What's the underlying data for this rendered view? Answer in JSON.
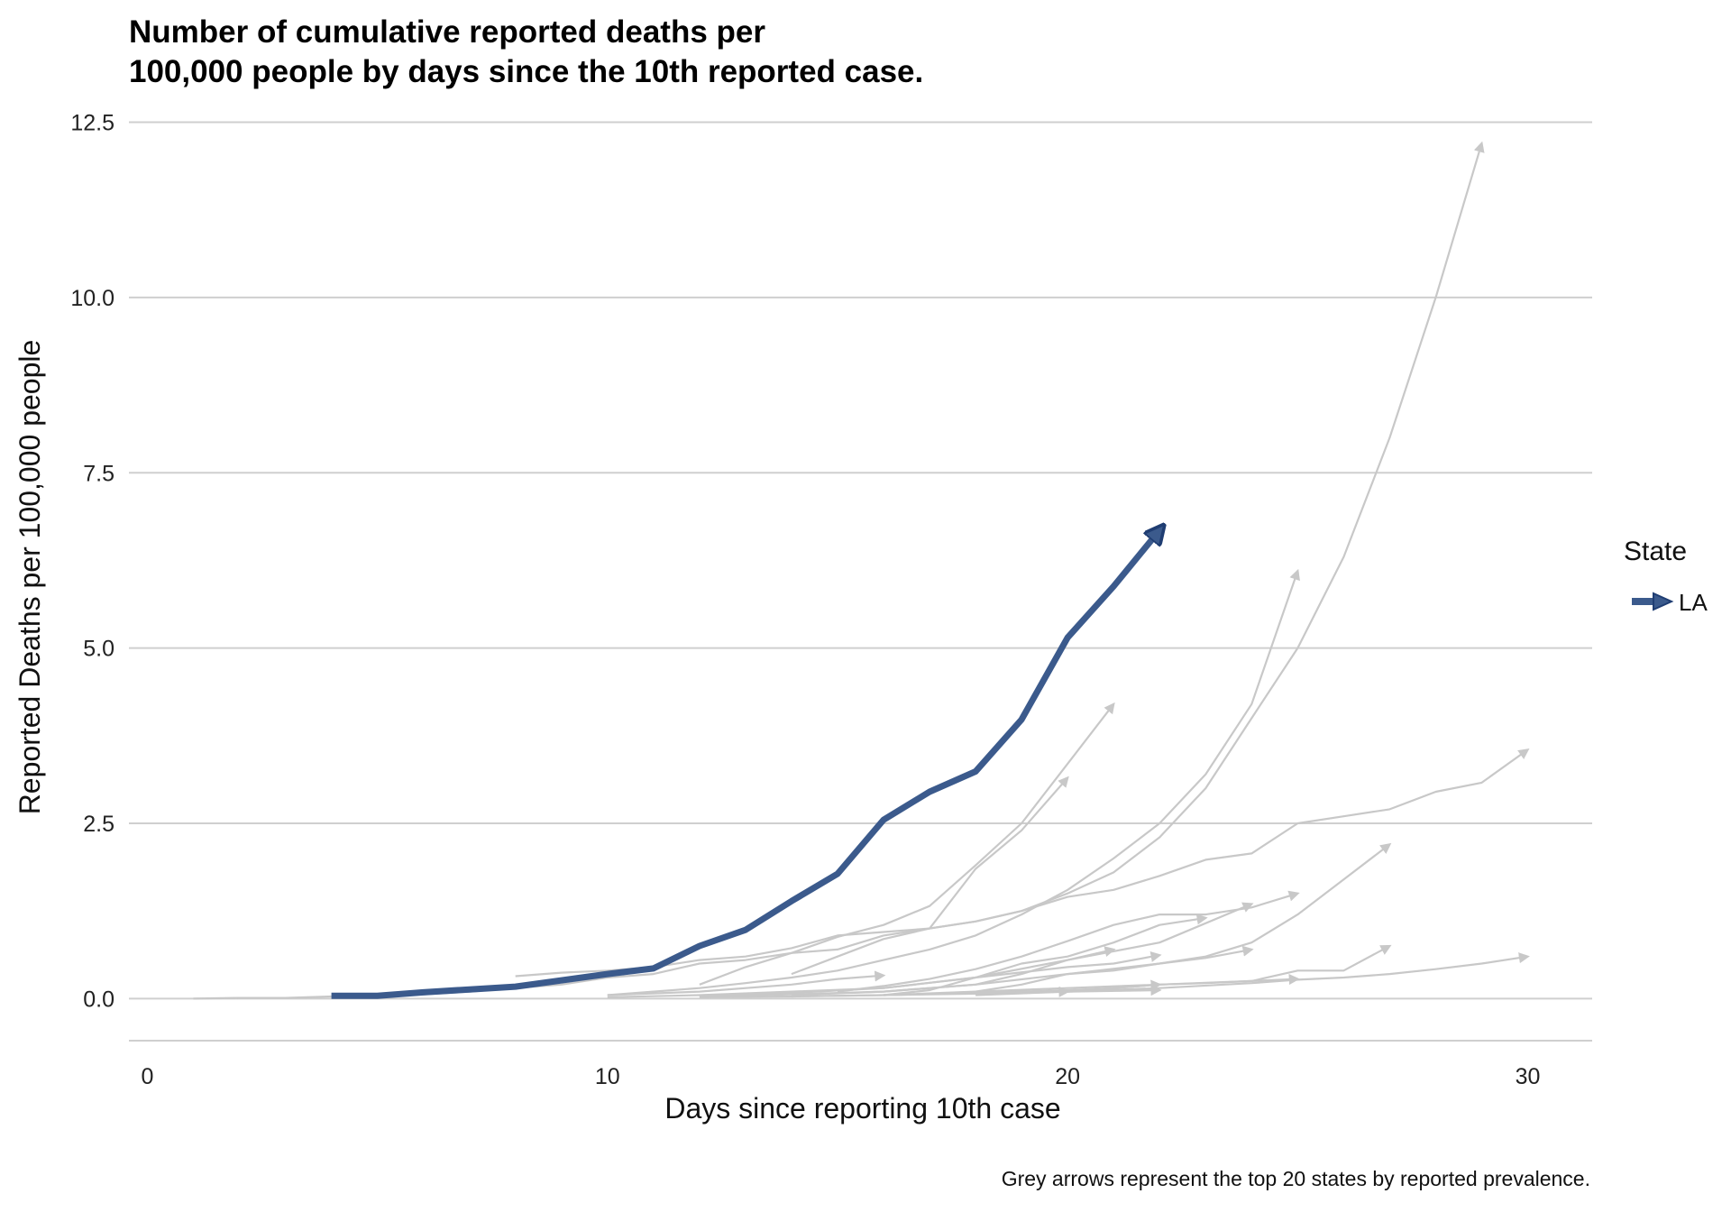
{
  "chart_data": {
    "type": "line",
    "title": "Number of cumulative reported deaths per\n100,000 people by days since the 10th reported case.",
    "title_lines": [
      "Number of cumulative reported deaths per",
      "100,000 people by days since the 10th reported case."
    ],
    "caption": "Grey arrows represent the top 20 states by reported prevalence.",
    "xlabel": "Days since reporting 10th case",
    "ylabel": "Reported Deaths per 100,000 people",
    "xlim": [
      -0.4,
      31.4
    ],
    "ylim": [
      -0.6,
      12.7
    ],
    "x_ticks": [
      0,
      10,
      20,
      30
    ],
    "x_tick_labels": [
      "0",
      "10",
      "20",
      "30"
    ],
    "y_ticks": [
      0,
      2.5,
      5,
      7.5,
      10,
      12.5
    ],
    "y_tick_labels": [
      "0.0",
      "2.5",
      "5.0",
      "7.5",
      "10.0",
      "12.5"
    ],
    "grid": "horizontal",
    "legend": {
      "title": "State",
      "placement": "right",
      "entries": [
        "LA"
      ]
    },
    "highlight_color": "#3b5a8c",
    "background_series_color": "#c8c8c8",
    "highlight_series": {
      "name": "LA",
      "x": [
        4,
        5,
        6,
        7,
        8,
        9,
        10,
        11,
        12,
        13,
        14,
        15,
        16,
        17,
        18,
        19,
        20,
        21,
        22
      ],
      "y": [
        0.04,
        0.04,
        0.09,
        0.13,
        0.17,
        0.26,
        0.35,
        0.43,
        0.75,
        0.98,
        1.39,
        1.78,
        2.55,
        2.95,
        3.24,
        3.98,
        5.15,
        5.88,
        6.68
      ]
    },
    "background_series": [
      {
        "x": [
          1,
          2,
          3,
          4,
          5,
          6,
          7,
          8,
          9,
          10,
          11,
          12,
          13,
          14,
          15,
          16,
          17,
          18,
          19,
          20,
          21,
          22,
          23,
          24,
          25,
          26,
          27,
          28,
          29
        ],
        "y": [
          0,
          0.01,
          0.01,
          0.03,
          0.04,
          0.06,
          0.1,
          0.15,
          0.2,
          0.3,
          0.35,
          0.5,
          0.55,
          0.65,
          0.7,
          0.9,
          1.0,
          1.1,
          1.25,
          1.5,
          1.8,
          2.3,
          3.0,
          4.0,
          5.0,
          6.3,
          8.0,
          10.0,
          12.2
        ]
      },
      {
        "x": [
          8,
          9,
          10,
          11,
          12,
          13,
          14,
          15,
          16,
          17,
          18,
          19,
          20,
          21,
          22,
          23,
          24,
          25,
          26,
          27,
          28,
          29,
          30
        ],
        "y": [
          0.32,
          0.37,
          0.4,
          0.45,
          0.55,
          0.6,
          0.72,
          0.9,
          0.95,
          1.0,
          1.1,
          1.25,
          1.45,
          1.55,
          1.75,
          1.98,
          2.07,
          2.5,
          2.6,
          2.7,
          2.95,
          3.08,
          3.55
        ]
      },
      {
        "x": [
          10,
          11,
          12,
          13,
          14,
          15,
          16,
          17,
          18,
          19,
          20,
          21,
          22,
          23,
          24,
          25
        ],
        "y": [
          0.05,
          0.1,
          0.15,
          0.22,
          0.3,
          0.4,
          0.55,
          0.7,
          0.9,
          1.2,
          1.55,
          2.0,
          2.5,
          3.2,
          4.2,
          6.1
        ]
      },
      {
        "x": [
          12,
          13,
          14,
          15,
          16,
          17,
          18,
          19,
          20,
          21
        ],
        "y": [
          0.2,
          0.45,
          0.65,
          0.88,
          1.05,
          1.32,
          1.9,
          2.5,
          3.35,
          4.2
        ]
      },
      {
        "x": [
          14,
          15,
          16,
          17,
          18,
          19,
          20
        ],
        "y": [
          0.35,
          0.6,
          0.85,
          1.0,
          1.85,
          2.4,
          3.15
        ]
      },
      {
        "x": [
          15,
          16,
          17,
          18,
          19,
          20,
          21,
          22,
          23,
          24,
          25
        ],
        "y": [
          0.1,
          0.18,
          0.28,
          0.42,
          0.6,
          0.82,
          1.05,
          1.2,
          1.2,
          1.3,
          1.5
        ]
      },
      {
        "x": [
          12,
          14,
          16,
          18,
          20,
          22,
          24
        ],
        "y": [
          0.04,
          0.08,
          0.15,
          0.3,
          0.55,
          0.8,
          1.35
        ]
      },
      {
        "x": [
          16,
          17,
          18,
          19,
          20,
          21,
          22,
          23
        ],
        "y": [
          0.05,
          0.12,
          0.3,
          0.5,
          0.6,
          0.8,
          1.05,
          1.15
        ]
      },
      {
        "x": [
          14,
          16,
          18,
          20,
          22,
          23,
          24,
          25,
          26,
          27
        ],
        "y": [
          0.05,
          0.1,
          0.2,
          0.35,
          0.5,
          0.6,
          0.8,
          1.2,
          1.7,
          2.2
        ]
      },
      {
        "x": [
          18,
          19,
          20,
          21,
          22,
          23,
          24
        ],
        "y": [
          0.1,
          0.2,
          0.35,
          0.4,
          0.5,
          0.58,
          0.7
        ]
      },
      {
        "x": [
          10,
          12,
          14,
          16,
          18,
          20,
          21,
          22
        ],
        "y": [
          0.02,
          0.05,
          0.1,
          0.15,
          0.3,
          0.45,
          0.5,
          0.62
        ]
      },
      {
        "x": [
          12,
          14,
          16,
          18,
          19,
          20,
          21
        ],
        "y": [
          0.03,
          0.06,
          0.1,
          0.2,
          0.35,
          0.55,
          0.7
        ]
      },
      {
        "x": [
          10,
          12,
          14,
          15,
          16
        ],
        "y": [
          0.05,
          0.1,
          0.2,
          0.28,
          0.33
        ]
      },
      {
        "x": [
          16,
          18,
          20,
          22,
          24,
          25,
          26,
          27
        ],
        "y": [
          0.05,
          0.1,
          0.15,
          0.2,
          0.25,
          0.4,
          0.4,
          0.75
        ]
      },
      {
        "x": [
          18,
          20,
          22,
          24,
          25,
          26,
          27,
          28,
          29,
          30
        ],
        "y": [
          0.05,
          0.1,
          0.15,
          0.22,
          0.27,
          0.3,
          0.35,
          0.42,
          0.5,
          0.6
        ]
      },
      {
        "x": [
          20,
          21,
          22,
          23,
          24,
          25
        ],
        "y": [
          0.1,
          0.15,
          0.2,
          0.22,
          0.25,
          0.28
        ]
      },
      {
        "x": [
          16,
          18,
          20,
          21,
          22
        ],
        "y": [
          0.05,
          0.08,
          0.12,
          0.15,
          0.2
        ]
      },
      {
        "x": [
          14,
          16,
          18,
          20,
          22
        ],
        "y": [
          0.03,
          0.05,
          0.08,
          0.1,
          0.12
        ]
      },
      {
        "x": [
          12,
          14,
          16,
          18,
          20
        ],
        "y": [
          0.02,
          0.03,
          0.05,
          0.07,
          0.1
        ]
      }
    ]
  }
}
